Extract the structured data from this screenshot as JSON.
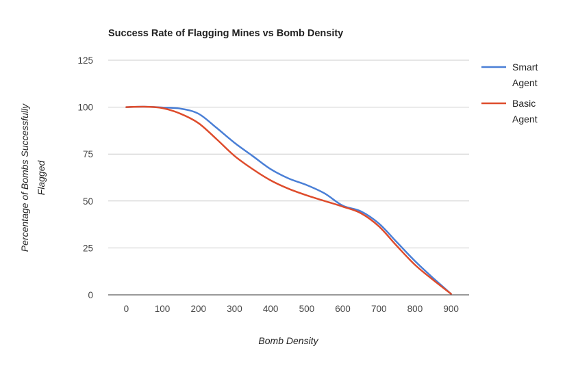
{
  "chart_data": {
    "type": "line",
    "title": "Success Rate of Flagging Mines vs Bomb Density",
    "xlabel": "Bomb Density",
    "ylabel": [
      "Percentage of Bombs Successfully",
      "Flagged"
    ],
    "xlim": [
      -50,
      950
    ],
    "ylim": [
      0,
      125
    ],
    "x_ticks": [
      "0",
      "100",
      "200",
      "300",
      "400",
      "500",
      "600",
      "700",
      "800",
      "900"
    ],
    "y_ticks": [
      "0",
      "25",
      "50",
      "75",
      "100",
      "125"
    ],
    "grid": true,
    "legend_position": "right",
    "x": [
      0,
      50,
      100,
      150,
      200,
      250,
      300,
      350,
      400,
      450,
      500,
      550,
      600,
      650,
      700,
      750,
      800,
      850,
      900
    ],
    "series": [
      {
        "name": "Smart Agent",
        "color": "#4a7fd6",
        "values": [
          100,
          100.2,
          99.8,
          99.2,
          96.5,
          89,
          81,
          74,
          67,
          62,
          58.5,
          54,
          47.5,
          44.5,
          38,
          28,
          18,
          9,
          0.5
        ]
      },
      {
        "name": "Basic Agent",
        "color": "#de4c2c",
        "values": [
          100,
          100.2,
          99.5,
          96.5,
          91.5,
          83,
          74,
          67,
          61,
          56.5,
          53,
          50,
          47,
          43.5,
          36.5,
          26,
          16,
          8,
          0.5
        ]
      }
    ]
  }
}
